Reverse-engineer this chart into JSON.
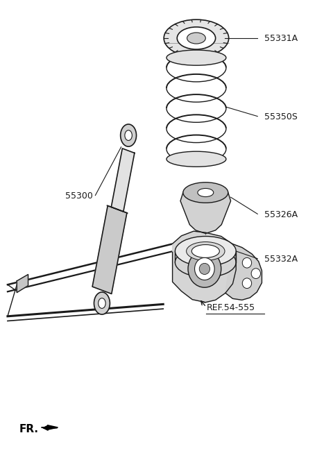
{
  "bg_color": "#ffffff",
  "parts": [
    {
      "id": "55331A",
      "label": "55331A",
      "xl": 0.795,
      "yl": 0.92
    },
    {
      "id": "55350S",
      "label": "55350S",
      "xl": 0.795,
      "yl": 0.75
    },
    {
      "id": "55300",
      "label": "55300",
      "xl": 0.195,
      "yl": 0.58
    },
    {
      "id": "55326A",
      "label": "55326A",
      "xl": 0.795,
      "yl": 0.54
    },
    {
      "id": "55332A",
      "label": "55332A",
      "xl": 0.795,
      "yl": 0.445
    },
    {
      "id": "REF",
      "label": "REF.54-555",
      "xl": 0.62,
      "yl": 0.34
    }
  ],
  "fr_label": "FR.",
  "line_color": "#1a1a1a",
  "line_width": 1.2,
  "font_size": 9
}
